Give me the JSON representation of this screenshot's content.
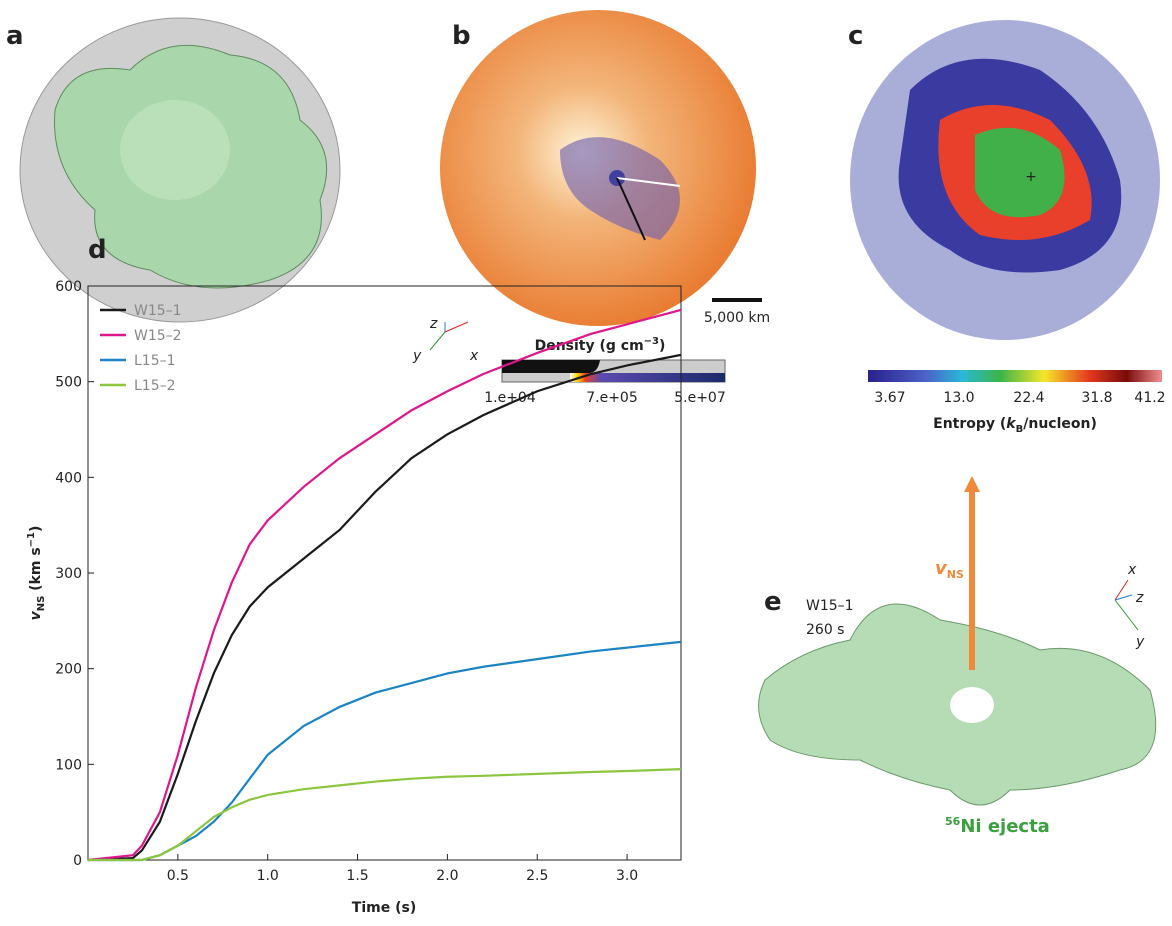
{
  "panels": {
    "a": "a",
    "b": "b",
    "c": "c",
    "d": "d",
    "e": "e"
  },
  "panel_b": {
    "scale_bar": "5,000 km",
    "axes": [
      "z",
      "y",
      "x"
    ],
    "colorbar_title": [
      "Density (g cm",
      "−3",
      ")"
    ],
    "colorbar_labels": [
      "1.e+04",
      "7.e+05",
      "5.e+07"
    ]
  },
  "panel_c": {
    "colorbar_labels": [
      "3.67",
      "13.0",
      "22.4",
      "31.8",
      "41.2"
    ],
    "colorbar_title": [
      "Entropy (",
      "k",
      "B",
      "/nucleon)"
    ]
  },
  "panel_e": {
    "model": "W15–1",
    "time": "260 s",
    "arrow_label": [
      "v",
      "NS"
    ],
    "ejecta_label": [
      "56",
      "Ni ejecta"
    ],
    "axes": [
      "x",
      "z",
      "y"
    ]
  },
  "chart_data": {
    "type": "line",
    "xlabel": "Time (s)",
    "ylabel": [
      "v",
      "NS",
      " (km s",
      "−1",
      ")"
    ],
    "x": [
      0,
      0.25,
      0.3,
      0.4,
      0.5,
      0.6,
      0.7,
      0.8,
      0.9,
      1.0,
      1.2,
      1.4,
      1.6,
      1.8,
      2.0,
      2.2,
      2.5,
      2.8,
      3.0,
      3.3
    ],
    "series": [
      {
        "name": "W15–1",
        "color": "#1a1a1a",
        "values": [
          0,
          2,
          10,
          40,
          90,
          145,
          195,
          235,
          265,
          285,
          315,
          345,
          385,
          420,
          445,
          465,
          490,
          508,
          517,
          528
        ]
      },
      {
        "name": "W15–2",
        "color": "#e0168c",
        "values": [
          0,
          5,
          15,
          50,
          110,
          180,
          240,
          290,
          330,
          355,
          390,
          420,
          445,
          470,
          490,
          508,
          530,
          550,
          560,
          575
        ]
      },
      {
        "name": "L15–1",
        "color": "#1b84c4",
        "values": [
          0,
          0,
          0,
          5,
          15,
          25,
          40,
          60,
          85,
          110,
          140,
          160,
          175,
          185,
          195,
          202,
          210,
          218,
          222,
          228
        ]
      },
      {
        "name": "L15–2",
        "color": "#8cc63f",
        "values": [
          0,
          0,
          0,
          5,
          15,
          30,
          45,
          55,
          63,
          68,
          74,
          78,
          82,
          85,
          87,
          88,
          90,
          92,
          93,
          95
        ]
      }
    ],
    "xlim": [
      0,
      3.3
    ],
    "ylim": [
      0,
      600
    ],
    "xticks": [
      0.5,
      {
        "value": 1,
        "label": "1.0"
      },
      1.5,
      {
        "value": 2,
        "label": "2.0"
      },
      2.5,
      {
        "value": 3,
        "label": "3.0"
      }
    ],
    "yticks": [
      0,
      100,
      200,
      300,
      400,
      500,
      600
    ],
    "legend": "upper left",
    "grid": false
  }
}
